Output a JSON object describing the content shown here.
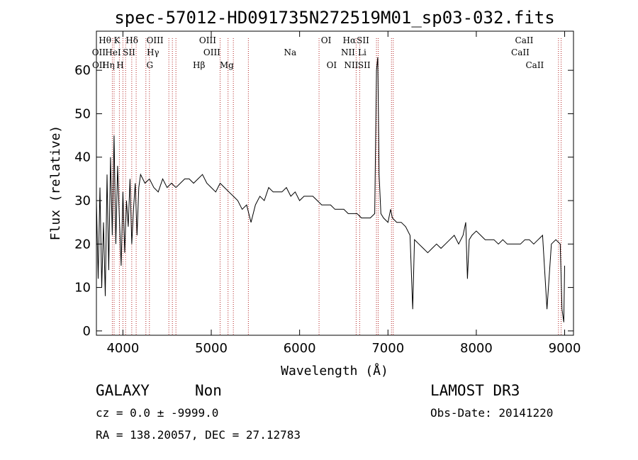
{
  "chart_data": {
    "type": "line",
    "title": "spec-57012-HD091735N272519M01_sp03-032.fits",
    "xlabel": "Wavelength (Å)",
    "ylabel": "Flux (relative)",
    "xlim": [
      3700,
      9100
    ],
    "ylim": [
      -1,
      69
    ],
    "xticks": [
      4000,
      5000,
      6000,
      7000,
      8000,
      9000
    ],
    "yticks": [
      0,
      10,
      20,
      30,
      40,
      50,
      60
    ],
    "grid": false,
    "series": [
      {
        "x": [
          3700,
          3720,
          3740,
          3760,
          3780,
          3800,
          3820,
          3840,
          3860,
          3880,
          3900,
          3920,
          3940,
          3960,
          3980,
          4000,
          4020,
          4040,
          4060,
          4080,
          4100,
          4120,
          4140,
          4160,
          4180,
          4200,
          4250,
          4300,
          4350,
          4400,
          4450,
          4500,
          4550,
          4600,
          4650,
          4700,
          4750,
          4800,
          4850,
          4900,
          4950,
          5000,
          5050,
          5100,
          5150,
          5200,
          5250,
          5300,
          5350,
          5400,
          5450,
          5500,
          5550,
          5600,
          5650,
          5700,
          5750,
          5800,
          5850,
          5900,
          5950,
          6000,
          6050,
          6100,
          6150,
          6200,
          6250,
          6300,
          6350,
          6400,
          6450,
          6500,
          6550,
          6600,
          6650,
          6700,
          6750,
          6800,
          6850,
          6870,
          6885,
          6900,
          6920,
          6950,
          7000,
          7030,
          7050,
          7100,
          7150,
          7200,
          7250,
          7280,
          7300,
          7350,
          7400,
          7450,
          7500,
          7550,
          7600,
          7650,
          7700,
          7750,
          7800,
          7850,
          7880,
          7900,
          7920,
          7950,
          8000,
          8050,
          8100,
          8150,
          8200,
          8250,
          8300,
          8350,
          8400,
          8450,
          8500,
          8550,
          8600,
          8650,
          8700,
          8750,
          8800,
          8850,
          8900,
          8950,
          8970,
          8990,
          9000
        ],
        "values": [
          30,
          12,
          33,
          10,
          25,
          8,
          36,
          14,
          40,
          22,
          45,
          20,
          38,
          26,
          15,
          32,
          18,
          30,
          24,
          35,
          20,
          28,
          34,
          22,
          33,
          36,
          34,
          35,
          33,
          32,
          35,
          33,
          34,
          33,
          34,
          35,
          35,
          34,
          35,
          36,
          34,
          33,
          32,
          34,
          33,
          32,
          31,
          30,
          28,
          29,
          25,
          29,
          31,
          30,
          33,
          32,
          32,
          32,
          33,
          31,
          32,
          30,
          31,
          31,
          31,
          30,
          29,
          29,
          29,
          28,
          28,
          28,
          27,
          27,
          27,
          26,
          26,
          26,
          27,
          60,
          63,
          36,
          27,
          26,
          25,
          28,
          26,
          25,
          25,
          24,
          22,
          5,
          21,
          20,
          19,
          18,
          19,
          20,
          19,
          20,
          21,
          22,
          20,
          22,
          25,
          12,
          21,
          22,
          23,
          22,
          21,
          21,
          21,
          20,
          21,
          20,
          20,
          20,
          20,
          21,
          21,
          20,
          21,
          22,
          5,
          20,
          21,
          20,
          5,
          2,
          15
        ]
      }
    ],
    "spectral_lines": [
      {
        "label": "Hθ",
        "x": 3797,
        "row": 0
      },
      {
        "label": "OII",
        "x": 3727,
        "row": 1
      },
      {
        "label": "OII",
        "x": 3729,
        "row": 2
      },
      {
        "label": "HeI",
        "x": 3889,
        "row": 1
      },
      {
        "label": "Hη",
        "x": 3835,
        "row": 2
      },
      {
        "label": "K",
        "x": 3934,
        "row": 0
      },
      {
        "label": "H",
        "x": 3969,
        "row": 2
      },
      {
        "label": "Hδ",
        "x": 4102,
        "row": 0
      },
      {
        "label": "SII",
        "x": 4069,
        "row": 1
      },
      {
        "label": "OIII",
        "x": 4363,
        "row": 0
      },
      {
        "label": "Hγ",
        "x": 4340,
        "row": 1
      },
      {
        "label": "G",
        "x": 4304,
        "row": 2
      },
      {
        "label": "OIII",
        "x": 4959,
        "row": 0
      },
      {
        "label": "OIII",
        "x": 5007,
        "row": 1
      },
      {
        "label": "Hβ",
        "x": 4861,
        "row": 2
      },
      {
        "label": "Mg",
        "x": 5175,
        "row": 2
      },
      {
        "label": "Na",
        "x": 5893,
        "row": 1
      },
      {
        "label": "OI",
        "x": 6300,
        "row": 0
      },
      {
        "label": "OI",
        "x": 6363,
        "row": 2
      },
      {
        "label": "Hα",
        "x": 6563,
        "row": 0
      },
      {
        "label": "NII",
        "x": 6548,
        "row": 1
      },
      {
        "label": "NII",
        "x": 6584,
        "row": 2
      },
      {
        "label": "SII",
        "x": 6717,
        "row": 0
      },
      {
        "label": "Li",
        "x": 6708,
        "row": 1
      },
      {
        "label": "SII",
        "x": 6731,
        "row": 2
      },
      {
        "label": "CaII",
        "x": 8542,
        "row": 0
      },
      {
        "label": "CaII",
        "x": 8498,
        "row": 1
      },
      {
        "label": "CaII",
        "x": 8662,
        "row": 2
      }
    ],
    "line_markers_x": [
      3880,
      3900,
      3960,
      4000,
      4030,
      4100,
      4150,
      4260,
      4300,
      4520,
      4560,
      4600,
      5100,
      5190,
      5250,
      5420,
      6220,
      6640,
      6680,
      6870,
      6890,
      7040,
      7060,
      8930,
      8960
    ]
  },
  "info": {
    "class_label": "GALAXY",
    "subclass_label": "Non",
    "survey": "LAMOST DR3",
    "redshift_line": "cz = 0.0 ± -9999.0",
    "obs_date_line": "Obs-Date: 20141220",
    "coords_line": "RA = 138.20057, DEC =  27.12783"
  }
}
